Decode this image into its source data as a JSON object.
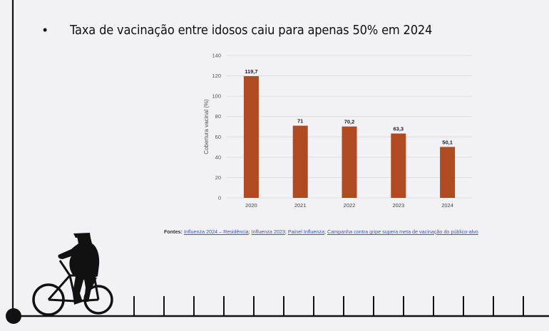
{
  "slide": {
    "bullet": "•",
    "headline": "Taxa de vacinação entre idosos caiu para apenas 50% em 2024"
  },
  "chart_data": {
    "type": "bar",
    "categories": [
      "2020",
      "2021",
      "2022",
      "2023",
      "2024"
    ],
    "values": [
      119.7,
      71,
      70.2,
      63.3,
      50.1
    ],
    "value_labels": [
      "119,7",
      "71",
      "70,2",
      "63,3",
      "50,1"
    ],
    "ylabel": "Cobertura vacinal (%)",
    "xlabel": "",
    "ylim": [
      0,
      140
    ],
    "yticks": [
      0,
      20,
      40,
      60,
      80,
      100,
      120,
      140
    ],
    "grid": true,
    "bar_color": "#b04a22"
  },
  "sources": {
    "label": "Fontes:",
    "links": [
      "Influenza 2024 – Residência",
      "Influenza 2023",
      "Painel Influenza",
      "Campanha contra gripe supera meta de vacinação do público-alvo"
    ],
    "separator": "; "
  },
  "colors": {
    "background": "#f2f1f5",
    "ink": "#111111"
  }
}
